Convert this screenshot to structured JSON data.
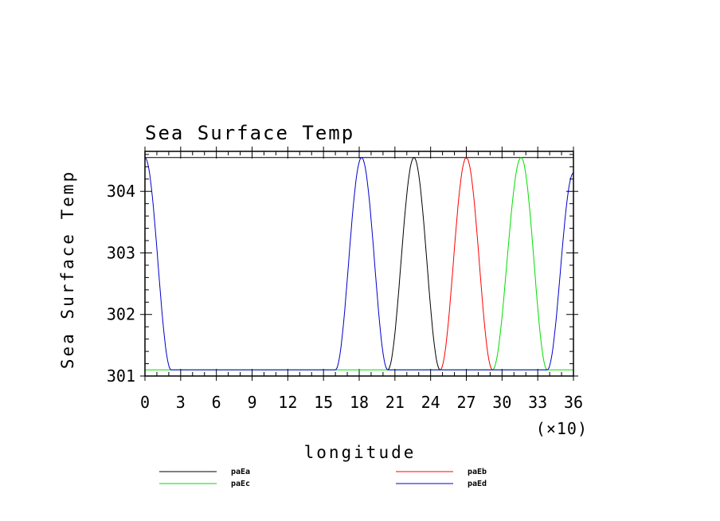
{
  "chart_data": {
    "type": "line",
    "title": "Sea Surface Temp",
    "xlabel": "longitude",
    "ylabel": "Sea Surface Temp",
    "x_multiplier_label": "(×10)",
    "xlim": [
      0,
      36
    ],
    "ylim": [
      301,
      304.65
    ],
    "x_ticks": [
      0,
      3,
      6,
      9,
      12,
      15,
      18,
      21,
      24,
      27,
      30,
      33,
      36
    ],
    "x_tick_labels": [
      "0",
      "3",
      "6",
      "9",
      "12",
      "15",
      "18",
      "21",
      "24",
      "27",
      "30",
      "33",
      "36"
    ],
    "y_ticks": [
      301,
      302,
      303,
      304
    ],
    "y_tick_labels": [
      "301",
      "302",
      "303",
      "304"
    ],
    "grid": false,
    "legend_position": "bottom",
    "baseline": 301.1,
    "reference_line": 304.55,
    "series": [
      {
        "name": "paEa",
        "color": "#000000",
        "x": [
          20.4,
          22.6,
          24.8
        ],
        "y": [
          301.1,
          304.55,
          301.1
        ]
      },
      {
        "name": "paEb",
        "color": "#ff0000",
        "x": [
          24.8,
          27.0,
          29.2
        ],
        "y": [
          301.1,
          304.55,
          301.1
        ]
      },
      {
        "name": "paEc",
        "color": "#00dd00",
        "x": [
          29.2,
          31.6,
          33.8
        ],
        "y": [
          301.1,
          304.55,
          301.1
        ]
      },
      {
        "name": "paEd",
        "color": "#0000cc",
        "x": [
          0,
          2.2,
          16.0,
          18.2,
          20.4,
          33.8,
          36
        ],
        "y": [
          304.55,
          301.1,
          301.1,
          304.55,
          301.1,
          301.1,
          304.3
        ]
      }
    ]
  }
}
